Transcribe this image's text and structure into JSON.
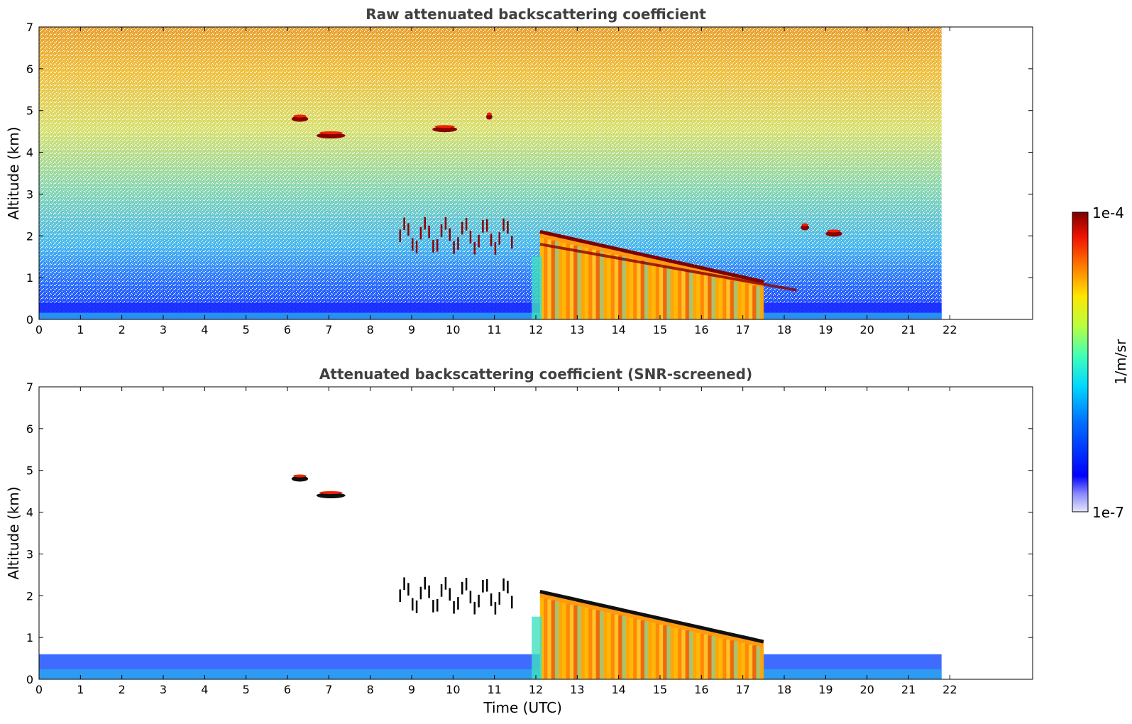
{
  "chart_data": [
    {
      "type": "heatmap",
      "title": "Raw attenuated backscattering coefficient",
      "xlabel": "",
      "ylabel": "Altitude (km)",
      "xlim": [
        0,
        24
      ],
      "ylim": [
        0,
        7
      ],
      "xticks": [
        "0",
        "1",
        "2",
        "3",
        "4",
        "5",
        "6",
        "7",
        "8",
        "9",
        "10",
        "11",
        "12",
        "13",
        "14",
        "15",
        "16",
        "17",
        "18",
        "19",
        "20",
        "21",
        "22"
      ],
      "yticks": [
        "0",
        "1",
        "2",
        "3",
        "4",
        "5",
        "6",
        "7"
      ],
      "data_extent_time_utc": [
        0,
        21.8
      ],
      "colorscale": "jet",
      "features": [
        {
          "kind": "boundary_layer",
          "t_start": 0,
          "t_end": 21.8,
          "top_km": 0.4
        },
        {
          "kind": "cloud",
          "t_start": 12.1,
          "t_end": 17.5,
          "base_km": 0.0,
          "top_km": 2.1
        },
        {
          "kind": "cloud_edge",
          "t_start": 12.1,
          "t_end": 18.3,
          "from_km": 1.8,
          "to_km": 0.7
        },
        {
          "kind": "elevated_layer",
          "t_start": 8.7,
          "t_end": 11.5,
          "alt_km": 2.0
        },
        {
          "kind": "cloud",
          "t_start": 18.4,
          "t_end": 18.6,
          "alt_km": 2.2
        },
        {
          "kind": "cloud",
          "t_start": 19.0,
          "t_end": 19.4,
          "alt_km": 2.05
        },
        {
          "kind": "cloud",
          "t_start": 6.7,
          "t_end": 7.4,
          "alt_km": 4.4
        },
        {
          "kind": "cloud",
          "t_start": 6.1,
          "t_end": 6.5,
          "alt_km": 4.8
        },
        {
          "kind": "cloud",
          "t_start": 9.5,
          "t_end": 10.1,
          "alt_km": 4.55
        },
        {
          "kind": "cloud",
          "t_start": 10.8,
          "t_end": 10.95,
          "alt_km": 4.85
        }
      ]
    },
    {
      "type": "heatmap",
      "title": "Attenuated backscattering coefficient (SNR-screened)",
      "xlabel": "Time (UTC)",
      "ylabel": "Altitude (km)",
      "xlim": [
        0,
        24
      ],
      "ylim": [
        0,
        7
      ],
      "xticks": [
        "0",
        "1",
        "2",
        "3",
        "4",
        "5",
        "6",
        "7",
        "8",
        "9",
        "10",
        "11",
        "12",
        "13",
        "14",
        "15",
        "16",
        "17",
        "18",
        "19",
        "20",
        "21",
        "22"
      ],
      "yticks": [
        "0",
        "1",
        "2",
        "3",
        "4",
        "5",
        "6",
        "7"
      ],
      "data_extent_time_utc": [
        0,
        21.8
      ],
      "colorscale": "jet",
      "features": [
        {
          "kind": "boundary_layer",
          "t_start": 0,
          "t_end": 21.8,
          "top_km": 0.6
        },
        {
          "kind": "cloud",
          "t_start": 12.1,
          "t_end": 17.5,
          "base_km": 0.0,
          "top_km": 2.1
        },
        {
          "kind": "elevated_layer",
          "t_start": 8.7,
          "t_end": 11.5,
          "alt_km": 2.0
        },
        {
          "kind": "cloud",
          "t_start": 6.7,
          "t_end": 7.4,
          "alt_km": 4.4
        },
        {
          "kind": "cloud",
          "t_start": 6.1,
          "t_end": 6.5,
          "alt_km": 4.8
        }
      ]
    }
  ],
  "colorbar": {
    "label": "1/m/sr",
    "max_label": "1e-4",
    "min_label": "1e-7",
    "scale": "log",
    "range": [
      1e-07,
      0.0001
    ]
  }
}
